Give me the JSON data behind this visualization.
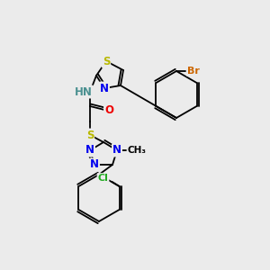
{
  "bg_color": "#ebebeb",
  "atom_colors": {
    "S": "#b8b800",
    "N": "#0000ee",
    "O": "#ee0000",
    "C": "#000000",
    "H": "#4a9090",
    "Br": "#cc6600",
    "Cl": "#22aa22"
  }
}
